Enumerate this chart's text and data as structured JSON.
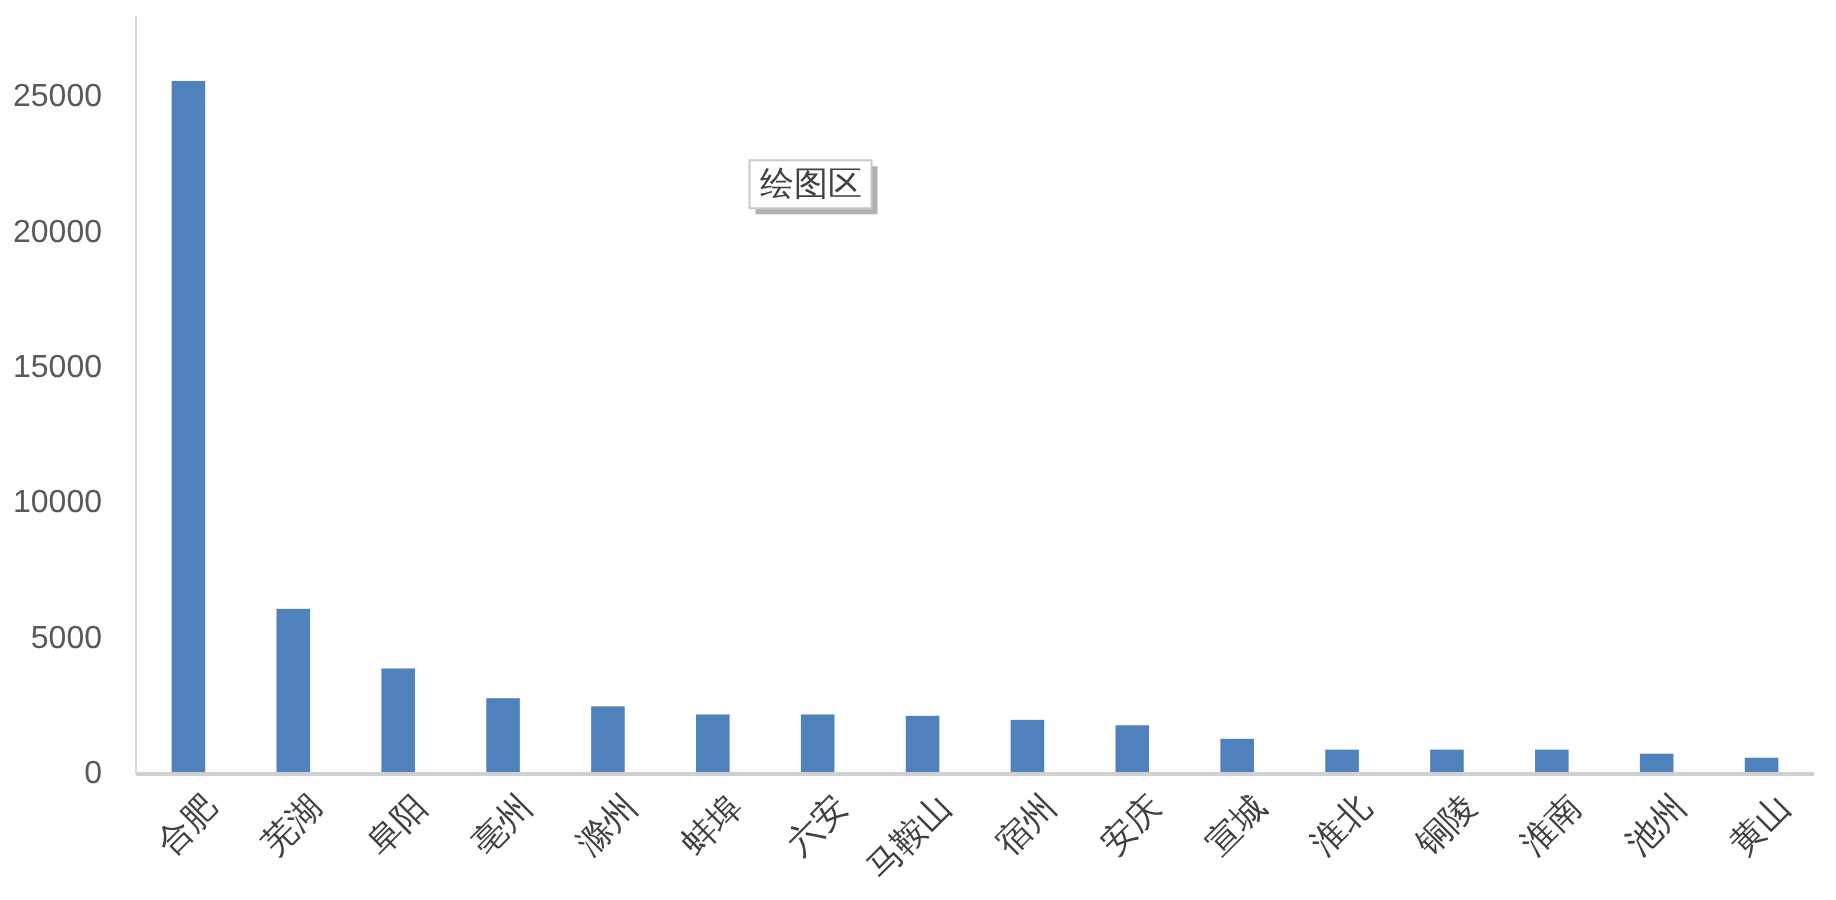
{
  "chart_data": {
    "type": "bar",
    "categories": [
      "合肥",
      "芜湖",
      "阜阳",
      "亳州",
      "滁州",
      "蚌埠",
      "六安",
      "马鞍山",
      "宿州",
      "安庆",
      "宣城",
      "淮北",
      "铜陵",
      "淮南",
      "池州",
      "黄山"
    ],
    "values": [
      25600,
      6100,
      3900,
      2800,
      2500,
      2200,
      2200,
      2150,
      2000,
      1800,
      1300,
      900,
      900,
      900,
      750,
      600
    ],
    "color": "#4f81bd",
    "ylim": [
      0,
      28000
    ],
    "yticks": [
      0,
      5000,
      10000,
      15000,
      20000,
      25000
    ],
    "annotations": [
      "绘图区"
    ]
  }
}
